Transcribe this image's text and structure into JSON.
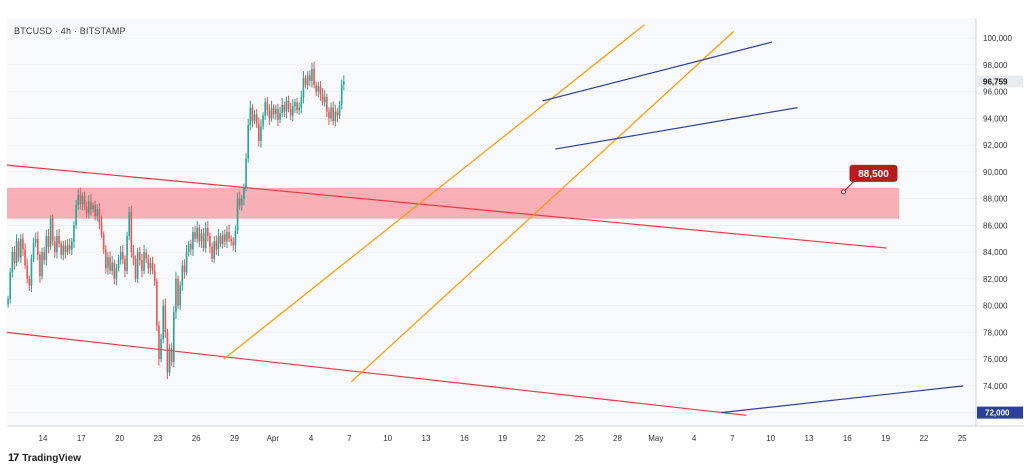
{
  "header": {
    "title": "BTCUSD · 4h · BITSTAMP"
  },
  "footer": {
    "brand": "TradingView",
    "logo_text": "17"
  },
  "colors": {
    "up": "#26a69a",
    "down": "#ef5350",
    "channel_red": "#f23645",
    "channel_orange": "#ff9800",
    "wedge_blue": "#2a3f9e",
    "zone_fill": "#f7a6ae",
    "label_bg": "#b71c1c",
    "last_price_bg": "#e9ecef",
    "support_bg": "#2a3f9e"
  },
  "chart_data": {
    "type": "candlestick",
    "symbol": "BTCUSD",
    "timeframe": "4h",
    "exchange": "BITSTAMP",
    "ylim": [
      71000,
      101500
    ],
    "y_ticks": [
      72000,
      74000,
      76000,
      78000,
      80000,
      82000,
      84000,
      86000,
      88000,
      90000,
      92000,
      94000,
      96000,
      98000,
      100000
    ],
    "x_ticks": [
      "14",
      "17",
      "20",
      "23",
      "26",
      "29",
      "Apr",
      "4",
      "7",
      "10",
      "13",
      "16",
      "19",
      "22",
      "25",
      "28",
      "May",
      "4",
      "7",
      "10",
      "13",
      "16",
      "19",
      "22",
      "25"
    ],
    "last_price": {
      "label": "96,759",
      "value": 96759
    },
    "support_level": {
      "label": "72,000",
      "value": 72000
    },
    "annotation": {
      "label": "88,500",
      "value": 88500,
      "x": "May 17"
    },
    "resistance_zone": {
      "low": 86500,
      "high": 88800
    },
    "candles_close": [
      80500,
      82500,
      84000,
      83200,
      84800,
      83600,
      85000,
      84200,
      83000,
      82000,
      81500,
      83500,
      84700,
      85000,
      83800,
      82200,
      84000,
      83400,
      85200,
      84400,
      86500,
      84800,
      84000,
      85200,
      84600,
      83800,
      84500,
      84000,
      84500,
      84200,
      84800,
      86000,
      87500,
      88300,
      87600,
      88200,
      87400,
      86900,
      87800,
      87200,
      87500,
      86700,
      87200,
      86200,
      85300,
      84200,
      82800,
      83600,
      82600,
      83200,
      82000,
      82800,
      83400,
      84000,
      83500,
      82600,
      85200,
      87000,
      84000,
      83500,
      82000,
      84000,
      83400,
      82600,
      84000,
      83500,
      82800,
      83200,
      82600,
      81800,
      78500,
      76000,
      77500,
      80000,
      78000,
      75000,
      76800,
      75800,
      79500,
      82000,
      80000,
      81500,
      83000,
      82500,
      84000,
      84600,
      84200,
      85500,
      85000,
      85800,
      84800,
      85400,
      84300,
      85800,
      85200,
      84400,
      83500,
      84800,
      84200,
      85200,
      84600,
      85300,
      84800,
      85500,
      85000,
      84800,
      84500,
      85600,
      88000,
      87500,
      88000,
      88800,
      91000,
      93500,
      94800,
      93800,
      94300,
      93600,
      92300,
      93400,
      94200,
      95200,
      94600,
      94000,
      94800,
      94300,
      94700,
      93900,
      94400,
      95000,
      94500,
      95300,
      94700,
      94200,
      94900,
      95200,
      94600,
      94800,
      95600,
      97000,
      96500,
      97200,
      96800,
      97700,
      96500,
      96000,
      96400,
      95800,
      95200,
      95600,
      94500,
      94000,
      94800,
      93800,
      94500,
      94200,
      95000,
      96500,
      96759
    ],
    "candles_start": "Mar 12",
    "candles_interval": "4h",
    "trendlines": [
      {
        "name": "descending-channel-upper",
        "color": "red",
        "points": [
          [
            "Mar 12",
            90500
          ],
          [
            "May 20",
            84300
          ]
        ]
      },
      {
        "name": "descending-channel-lower",
        "color": "red",
        "points": [
          [
            "Mar 12",
            78000
          ],
          [
            "May 9",
            71800
          ]
        ]
      },
      {
        "name": "ascending-channel-upper",
        "color": "orange",
        "points": [
          [
            "Mar 29",
            76000
          ],
          [
            "May 1",
            101000
          ]
        ]
      },
      {
        "name": "ascending-channel-lower",
        "color": "orange",
        "points": [
          [
            "Apr 8",
            74300
          ],
          [
            "May 8",
            100500
          ]
        ]
      },
      {
        "name": "wedge-upper",
        "color": "blue",
        "points": [
          [
            "Apr 23",
            95300
          ],
          [
            "May 11",
            99700
          ]
        ]
      },
      {
        "name": "wedge-lower",
        "color": "blue",
        "points": [
          [
            "Apr 24",
            91700
          ],
          [
            "May 13",
            94800
          ]
        ]
      },
      {
        "name": "support-line",
        "color": "blue",
        "points": [
          [
            "May 7",
            72000
          ],
          [
            "May 26",
            74000
          ]
        ]
      }
    ]
  }
}
